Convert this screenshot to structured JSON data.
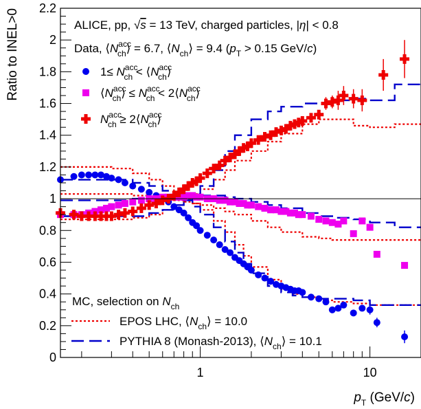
{
  "chart_data": {
    "type": "scatter",
    "xscale": "log",
    "xlim": [
      0.15,
      20
    ],
    "ylim": [
      0,
      2.2
    ],
    "xlabel": "p_T (GeV/c)",
    "ylabel": "Ratio to INEL>0",
    "x_ticks": [
      "1",
      "10"
    ],
    "y_ticks": [
      "0",
      "0.2",
      "0.4",
      "0.6",
      "0.8",
      "1",
      "1.2",
      "1.4",
      "1.6",
      "1.8",
      "2",
      "2.2"
    ],
    "reference_line": 1,
    "title_line1": "ALICE, pp, √s = 13 TeV, charged particles, |η| < 0.8",
    "title_line2": "Data, ⟨N_ch^acc⟩ = 6.7, ⟨N_ch⟩ = 9.4 (p_T > 0.15 GeV/c)",
    "mc_header": "MC, selection on N_ch",
    "colors": {
      "low": "#0000ee",
      "mid": "#ee00ee",
      "high": "#ee0000",
      "epos": "#ee0000",
      "pythia": "#0000cc"
    },
    "series": [
      {
        "name": "1 ≤ N_ch^acc < ⟨N_ch^acc⟩",
        "marker": "circle",
        "x": [
          0.15,
          0.18,
          0.2,
          0.22,
          0.24,
          0.26,
          0.28,
          0.3,
          0.33,
          0.36,
          0.4,
          0.45,
          0.5,
          0.55,
          0.6,
          0.65,
          0.7,
          0.75,
          0.8,
          0.85,
          0.9,
          0.95,
          1.0,
          1.1,
          1.2,
          1.3,
          1.4,
          1.5,
          1.6,
          1.7,
          1.8,
          1.9,
          2.0,
          2.2,
          2.4,
          2.6,
          2.8,
          3.0,
          3.2,
          3.4,
          3.6,
          3.8,
          4.0,
          4.5,
          5.0,
          5.5,
          6.0,
          6.5,
          7.0,
          8.0,
          9.0,
          10.0,
          11.0,
          16.0
        ],
        "y": [
          1.12,
          1.14,
          1.15,
          1.15,
          1.15,
          1.15,
          1.14,
          1.13,
          1.12,
          1.1,
          1.08,
          1.06,
          1.04,
          1.02,
          1.0,
          0.98,
          0.95,
          0.93,
          0.91,
          0.88,
          0.85,
          0.83,
          0.8,
          0.77,
          0.74,
          0.71,
          0.68,
          0.66,
          0.63,
          0.61,
          0.59,
          0.57,
          0.55,
          0.52,
          0.5,
          0.48,
          0.46,
          0.45,
          0.44,
          0.43,
          0.42,
          0.42,
          0.41,
          0.38,
          0.37,
          0.35,
          0.3,
          0.31,
          0.33,
          0.28,
          0.31,
          0.3,
          0.22,
          0.13
        ],
        "yerr": [
          0.01,
          0.01,
          0.01,
          0.01,
          0.01,
          0.01,
          0.01,
          0.01,
          0.01,
          0.01,
          0.01,
          0.01,
          0.01,
          0.01,
          0.01,
          0.01,
          0.01,
          0.01,
          0.01,
          0.01,
          0.01,
          0.01,
          0.01,
          0.01,
          0.01,
          0.01,
          0.01,
          0.01,
          0.01,
          0.01,
          0.01,
          0.01,
          0.01,
          0.01,
          0.01,
          0.01,
          0.01,
          0.01,
          0.01,
          0.01,
          0.01,
          0.01,
          0.01,
          0.01,
          0.01,
          0.01,
          0.02,
          0.02,
          0.02,
          0.02,
          0.02,
          0.03,
          0.03,
          0.04
        ]
      },
      {
        "name": "⟨N_ch^acc⟩ ≤ N_ch^acc < 2⟨N_ch^acc⟩",
        "marker": "square",
        "x": [
          0.15,
          0.18,
          0.2,
          0.22,
          0.24,
          0.26,
          0.28,
          0.3,
          0.33,
          0.36,
          0.4,
          0.45,
          0.5,
          0.55,
          0.6,
          0.65,
          0.7,
          0.75,
          0.8,
          0.85,
          0.9,
          0.95,
          1.0,
          1.1,
          1.2,
          1.3,
          1.4,
          1.5,
          1.6,
          1.7,
          1.8,
          1.9,
          2.0,
          2.2,
          2.4,
          2.6,
          2.8,
          3.0,
          3.2,
          3.4,
          3.6,
          3.8,
          4.0,
          4.5,
          5.0,
          5.5,
          6.0,
          6.5,
          7.0,
          8.0,
          9.0,
          10.0,
          11.0,
          16.0
        ],
        "y": [
          0.9,
          0.9,
          0.9,
          0.91,
          0.92,
          0.93,
          0.94,
          0.95,
          0.96,
          0.97,
          0.98,
          0.99,
          1.0,
          1.0,
          1.01,
          1.01,
          1.01,
          1.01,
          1.01,
          1.02,
          1.02,
          1.01,
          1.01,
          1.0,
          1.0,
          0.99,
          0.99,
          0.98,
          0.98,
          0.97,
          0.97,
          0.96,
          0.96,
          0.95,
          0.94,
          0.93,
          0.93,
          0.92,
          0.92,
          0.91,
          0.91,
          0.9,
          0.9,
          0.89,
          0.87,
          0.86,
          0.85,
          0.84,
          0.86,
          0.78,
          0.86,
          0.82,
          0.65,
          0.58
        ],
        "yerr": [
          0.01,
          0.01,
          0.01,
          0.01,
          0.01,
          0.01,
          0.01,
          0.01,
          0.01,
          0.01,
          0.01,
          0.01,
          0.01,
          0.01,
          0.01,
          0.01,
          0.01,
          0.01,
          0.01,
          0.01,
          0.01,
          0.01,
          0.01,
          0.01,
          0.01,
          0.01,
          0.01,
          0.01,
          0.01,
          0.01,
          0.01,
          0.01,
          0.01,
          0.01,
          0.01,
          0.01,
          0.01,
          0.01,
          0.01,
          0.01,
          0.01,
          0.01,
          0.01,
          0.01,
          0.01,
          0.01,
          0.01,
          0.01,
          0.01,
          0.01,
          0.01,
          0.01,
          0.01,
          0.01
        ]
      },
      {
        "name": "N_ch^acc ≥ 2⟨N_ch^acc⟩",
        "marker": "cross",
        "x": [
          0.15,
          0.18,
          0.2,
          0.22,
          0.24,
          0.26,
          0.28,
          0.3,
          0.33,
          0.36,
          0.4,
          0.45,
          0.5,
          0.55,
          0.6,
          0.65,
          0.7,
          0.75,
          0.8,
          0.85,
          0.9,
          0.95,
          1.0,
          1.1,
          1.2,
          1.3,
          1.4,
          1.5,
          1.6,
          1.7,
          1.8,
          1.9,
          2.0,
          2.2,
          2.4,
          2.6,
          2.8,
          3.0,
          3.2,
          3.4,
          3.6,
          3.8,
          4.0,
          4.5,
          5.0,
          5.5,
          6.0,
          6.5,
          7.0,
          8.0,
          9.0,
          12.0,
          16.0
        ],
        "y": [
          0.91,
          0.9,
          0.89,
          0.89,
          0.89,
          0.89,
          0.89,
          0.89,
          0.9,
          0.91,
          0.92,
          0.94,
          0.96,
          0.97,
          0.99,
          1.0,
          1.02,
          1.04,
          1.06,
          1.08,
          1.1,
          1.11,
          1.13,
          1.16,
          1.19,
          1.21,
          1.24,
          1.26,
          1.28,
          1.3,
          1.32,
          1.33,
          1.35,
          1.37,
          1.39,
          1.4,
          1.42,
          1.43,
          1.44,
          1.46,
          1.47,
          1.48,
          1.49,
          1.51,
          1.53,
          1.6,
          1.61,
          1.62,
          1.65,
          1.63,
          1.62,
          1.78,
          1.88
        ],
        "yerr": [
          0.01,
          0.01,
          0.01,
          0.01,
          0.01,
          0.01,
          0.01,
          0.01,
          0.01,
          0.01,
          0.01,
          0.01,
          0.01,
          0.01,
          0.01,
          0.01,
          0.01,
          0.01,
          0.01,
          0.01,
          0.01,
          0.01,
          0.01,
          0.01,
          0.01,
          0.01,
          0.01,
          0.01,
          0.01,
          0.01,
          0.01,
          0.01,
          0.01,
          0.01,
          0.01,
          0.01,
          0.01,
          0.01,
          0.01,
          0.01,
          0.01,
          0.01,
          0.01,
          0.02,
          0.02,
          0.04,
          0.04,
          0.06,
          0.06,
          0.06,
          0.07,
          0.1,
          0.12
        ]
      }
    ],
    "mc_curves": [
      {
        "name": "EPOS LHC, ⟨N_ch⟩ = 10.0",
        "style": "dotted",
        "lines": [
          {
            "x": [
              0.15,
              0.2,
              0.25,
              0.3,
              0.4,
              0.5,
              0.6,
              0.7,
              0.8,
              0.9,
              1.0,
              1.2,
              1.4,
              1.6,
              1.8,
              2.0,
              2.5,
              3.0,
              3.5,
              4.0,
              5.0,
              6.0,
              8.0,
              10.0,
              14.0,
              20.0
            ],
            "y": [
              1.2,
              1.2,
              1.2,
              1.19,
              1.16,
              1.12,
              1.08,
              1.04,
              1.0,
              0.97,
              0.93,
              0.86,
              0.79,
              0.71,
              0.64,
              0.57,
              0.49,
              0.43,
              0.4,
              0.38,
              0.36,
              0.35,
              0.34,
              0.33,
              0.33,
              0.33
            ]
          },
          {
            "x": [
              0.15,
              0.2,
              0.3,
              0.4,
              0.5,
              0.6,
              0.7,
              0.8,
              0.9,
              1.0,
              1.2,
              1.4,
              1.6,
              2.0,
              2.5,
              3.0,
              4.0,
              5.0,
              6.0,
              8.0,
              10.0,
              14.0,
              20.0
            ],
            "y": [
              1.03,
              1.03,
              1.03,
              1.02,
              1.01,
              1.0,
              0.99,
              0.98,
              0.97,
              0.96,
              0.94,
              0.92,
              0.9,
              0.86,
              0.82,
              0.79,
              0.76,
              0.75,
              0.74,
              0.74,
              0.74,
              0.74,
              0.74
            ]
          },
          {
            "x": [
              0.15,
              0.2,
              0.3,
              0.4,
              0.5,
              0.6,
              0.7,
              0.8,
              0.9,
              1.0,
              1.2,
              1.4,
              1.6,
              2.0,
              2.5,
              3.0,
              4.0,
              5.0,
              6.0,
              8.0,
              10.0,
              14.0,
              20.0
            ],
            "y": [
              0.87,
              0.87,
              0.87,
              0.88,
              0.9,
              0.93,
              0.96,
              1.0,
              1.03,
              1.06,
              1.12,
              1.18,
              1.24,
              1.3,
              1.36,
              1.41,
              1.47,
              1.5,
              1.5,
              1.46,
              1.45,
              1.47,
              1.47
            ]
          }
        ]
      },
      {
        "name": "PYTHIA 8 (Monash-2013), ⟨N_ch⟩ = 10.1",
        "style": "dashed",
        "lines": [
          {
            "x": [
              0.15,
              0.2,
              0.25,
              0.3,
              0.4,
              0.5,
              0.6,
              0.7,
              0.8,
              0.9,
              1.0,
              1.2,
              1.4,
              1.6,
              1.8,
              2.0,
              2.5,
              3.0,
              3.5,
              4.0,
              5.0,
              6.0,
              8.0,
              10.0,
              14.0,
              20.0
            ],
            "y": [
              1.12,
              1.12,
              1.12,
              1.12,
              1.1,
              1.08,
              1.05,
              1.02,
              0.99,
              0.95,
              0.9,
              0.82,
              0.73,
              0.66,
              0.59,
              0.53,
              0.45,
              0.41,
              0.39,
              0.38,
              0.37,
              0.37,
              0.36,
              0.33,
              0.33,
              0.33
            ]
          },
          {
            "x": [
              0.15,
              0.2,
              0.3,
              0.4,
              0.5,
              0.6,
              0.7,
              0.8,
              0.9,
              1.0,
              1.2,
              1.4,
              1.6,
              2.0,
              2.5,
              3.0,
              4.0,
              5.0,
              6.0,
              8.0,
              10.0,
              14.0,
              20.0
            ],
            "y": [
              0.99,
              0.99,
              0.99,
              1.0,
              1.0,
              1.01,
              1.01,
              1.02,
              1.02,
              1.02,
              1.02,
              1.01,
              1.0,
              0.98,
              0.96,
              0.94,
              0.91,
              0.89,
              0.88,
              0.87,
              0.85,
              0.82,
              0.82
            ]
          },
          {
            "x": [
              0.15,
              0.2,
              0.3,
              0.4,
              0.5,
              0.6,
              0.7,
              0.8,
              0.9,
              1.0,
              1.2,
              1.4,
              1.6,
              2.0,
              2.5,
              3.0,
              4.0,
              5.0,
              6.0,
              8.0,
              10.0,
              14.0,
              20.0
            ],
            "y": [
              0.89,
              0.89,
              0.89,
              0.89,
              0.91,
              0.93,
              0.96,
              0.99,
              1.03,
              1.08,
              1.18,
              1.3,
              1.4,
              1.5,
              1.55,
              1.58,
              1.6,
              1.6,
              1.62,
              1.63,
              1.62,
              1.72,
              1.72
            ]
          }
        ]
      }
    ]
  }
}
